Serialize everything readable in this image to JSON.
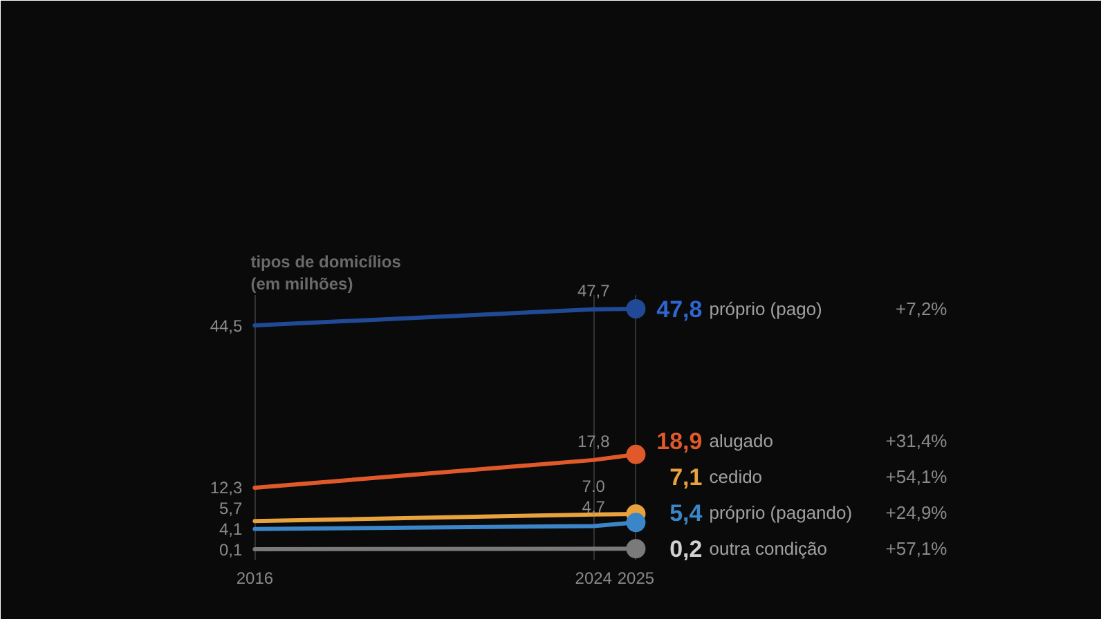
{
  "chart_data": {
    "type": "line",
    "title": "tipos de domicílios",
    "subtitle": "(em milhões)",
    "x": [
      2016,
      2024,
      2025
    ],
    "xlim": [
      2010,
      2036
    ],
    "xticks": [
      2016,
      2024,
      2025
    ],
    "grid": "x",
    "line_style": "solid",
    "series": [
      {
        "name": "próprio (pago)",
        "color": "#214a96",
        "values": [
          44.5,
          47.7,
          47.8
        ],
        "value_labels": [
          "44,5",
          "47,7",
          "47,8"
        ]
      },
      {
        "name": "alugado",
        "color": "#e0592a",
        "values": [
          12.3,
          17.8,
          18.9
        ],
        "value_labels": [
          "12,3",
          "17,8",
          "18,9"
        ]
      },
      {
        "name": "cedido",
        "color": "#e8a23e",
        "values": [
          5.7,
          7.0,
          7.1
        ],
        "value_labels": [
          "5,7",
          "7.0",
          "7,1"
        ]
      },
      {
        "name": "próprio (pagando)",
        "color": "#3b86c8",
        "values": [
          4.1,
          4.7,
          5.4
        ],
        "value_labels": [
          "4,1",
          "4,7",
          "5,4"
        ]
      },
      {
        "name": "outra condição",
        "color": "#7a7a7a",
        "x": [
          2016,
          2025
        ],
        "values": [
          0.1,
          0.2
        ],
        "value_labels": [
          "0,1",
          "0,2"
        ]
      }
    ],
    "annotations": [
      "+7,2%",
      "+31,4%",
      "+54,1%",
      "+24,9%",
      "+57,1%"
    ]
  }
}
